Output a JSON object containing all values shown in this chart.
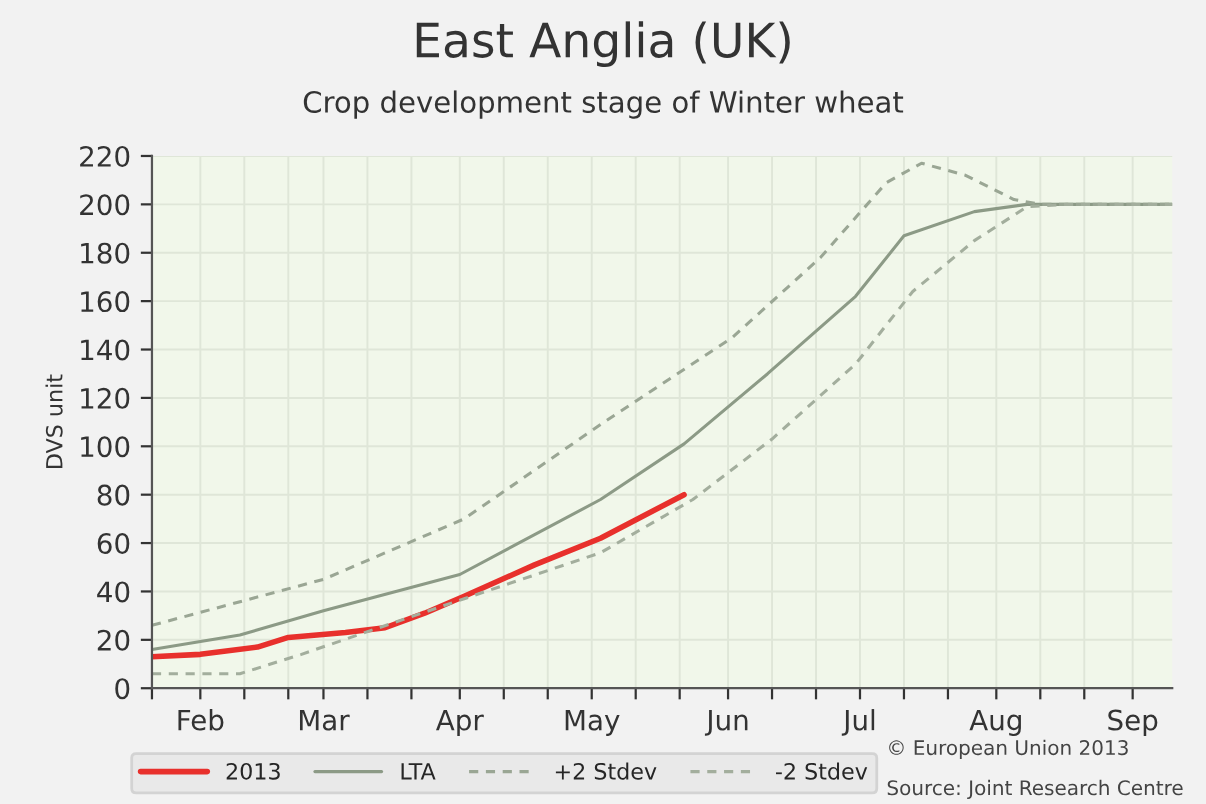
{
  "chart_data": {
    "type": "line",
    "title": "East Anglia (UK)",
    "subtitle": "Crop development stage of Winter wheat",
    "ylabel": "DVS unit",
    "series": [
      {
        "name": "2013",
        "color": "#e8302c",
        "line_style": "solid",
        "x": [
          "2013-01-21",
          "2013-02-01",
          "2013-02-14",
          "2013-02-21",
          "2013-03-06",
          "2013-03-15",
          "2013-03-24",
          "2013-04-02",
          "2013-04-18",
          "2013-05-03",
          "2013-05-22"
        ],
        "values": [
          13,
          14,
          17,
          21,
          23,
          25,
          31,
          38,
          51,
          62,
          80
        ]
      },
      {
        "name": "LTA",
        "color": "#8c9a86",
        "line_style": "solid",
        "x": [
          "2013-01-21",
          "2013-02-10",
          "2013-03-01",
          "2013-04-01",
          "2013-05-03",
          "2013-05-22",
          "2013-06-10",
          "2013-06-30",
          "2013-07-11",
          "2013-07-27",
          "2013-08-08",
          "2013-09-10"
        ],
        "values": [
          16,
          22,
          32,
          47,
          78,
          101,
          130,
          162,
          187,
          197,
          200,
          200
        ]
      },
      {
        "name": "+2 Stdev",
        "color": "#9aa694",
        "line_style": "dashed",
        "x": [
          "2013-01-21",
          "2013-03-01",
          "2013-04-02",
          "2013-05-03",
          "2013-06-02",
          "2013-06-22",
          "2013-07-07",
          "2013-07-15",
          "2013-07-25",
          "2013-08-05",
          "2013-08-11",
          "2013-09-10"
        ],
        "values": [
          26,
          45,
          70,
          109,
          145,
          178,
          209,
          217,
          212,
          202,
          200,
          200
        ]
      },
      {
        "name": "-2 Stdev",
        "color": "#a3ae9d",
        "line_style": "dashed",
        "x": [
          "2013-01-21",
          "2013-02-10",
          "2013-02-24",
          "2013-03-12",
          "2013-04-02",
          "2013-05-03",
          "2013-05-24",
          "2013-06-11",
          "2013-06-30",
          "2013-07-13",
          "2013-07-27",
          "2013-08-08",
          "2013-08-17",
          "2013-09-10"
        ],
        "values": [
          6,
          6,
          14,
          24,
          37,
          56,
          78,
          103,
          134,
          164,
          185,
          199,
          200,
          200
        ]
      }
    ],
    "xlim": [
      "2013-01-21",
      "2013-09-10"
    ],
    "xticks": [
      {
        "value": "2013-01-21",
        "label": null
      },
      {
        "value": "2013-02-01",
        "label": "Feb"
      },
      {
        "value": "2013-02-11",
        "label": null
      },
      {
        "value": "2013-02-21",
        "label": null
      },
      {
        "value": "2013-03-01",
        "label": "Mar"
      },
      {
        "value": "2013-03-11",
        "label": null
      },
      {
        "value": "2013-03-21",
        "label": null
      },
      {
        "value": "2013-04-01",
        "label": "Apr"
      },
      {
        "value": "2013-04-11",
        "label": null
      },
      {
        "value": "2013-04-21",
        "label": null
      },
      {
        "value": "2013-05-01",
        "label": "May"
      },
      {
        "value": "2013-05-11",
        "label": null
      },
      {
        "value": "2013-05-21",
        "label": null
      },
      {
        "value": "2013-06-01",
        "label": "Jun"
      },
      {
        "value": "2013-06-11",
        "label": null
      },
      {
        "value": "2013-06-21",
        "label": null
      },
      {
        "value": "2013-07-01",
        "label": "Jul"
      },
      {
        "value": "2013-07-11",
        "label": null
      },
      {
        "value": "2013-07-21",
        "label": null
      },
      {
        "value": "2013-08-01",
        "label": "Aug"
      },
      {
        "value": "2013-08-11",
        "label": null
      },
      {
        "value": "2013-08-21",
        "label": null
      },
      {
        "value": "2013-09-01",
        "label": "Sep"
      }
    ],
    "ylim": [
      0,
      220
    ],
    "yticks": [
      0,
      20,
      40,
      60,
      80,
      100,
      120,
      140,
      160,
      180,
      200,
      220
    ],
    "grid": true,
    "legend": "bottom",
    "annotations": [
      "© European Union 2013",
      "Source: Joint Research Centre"
    ]
  }
}
